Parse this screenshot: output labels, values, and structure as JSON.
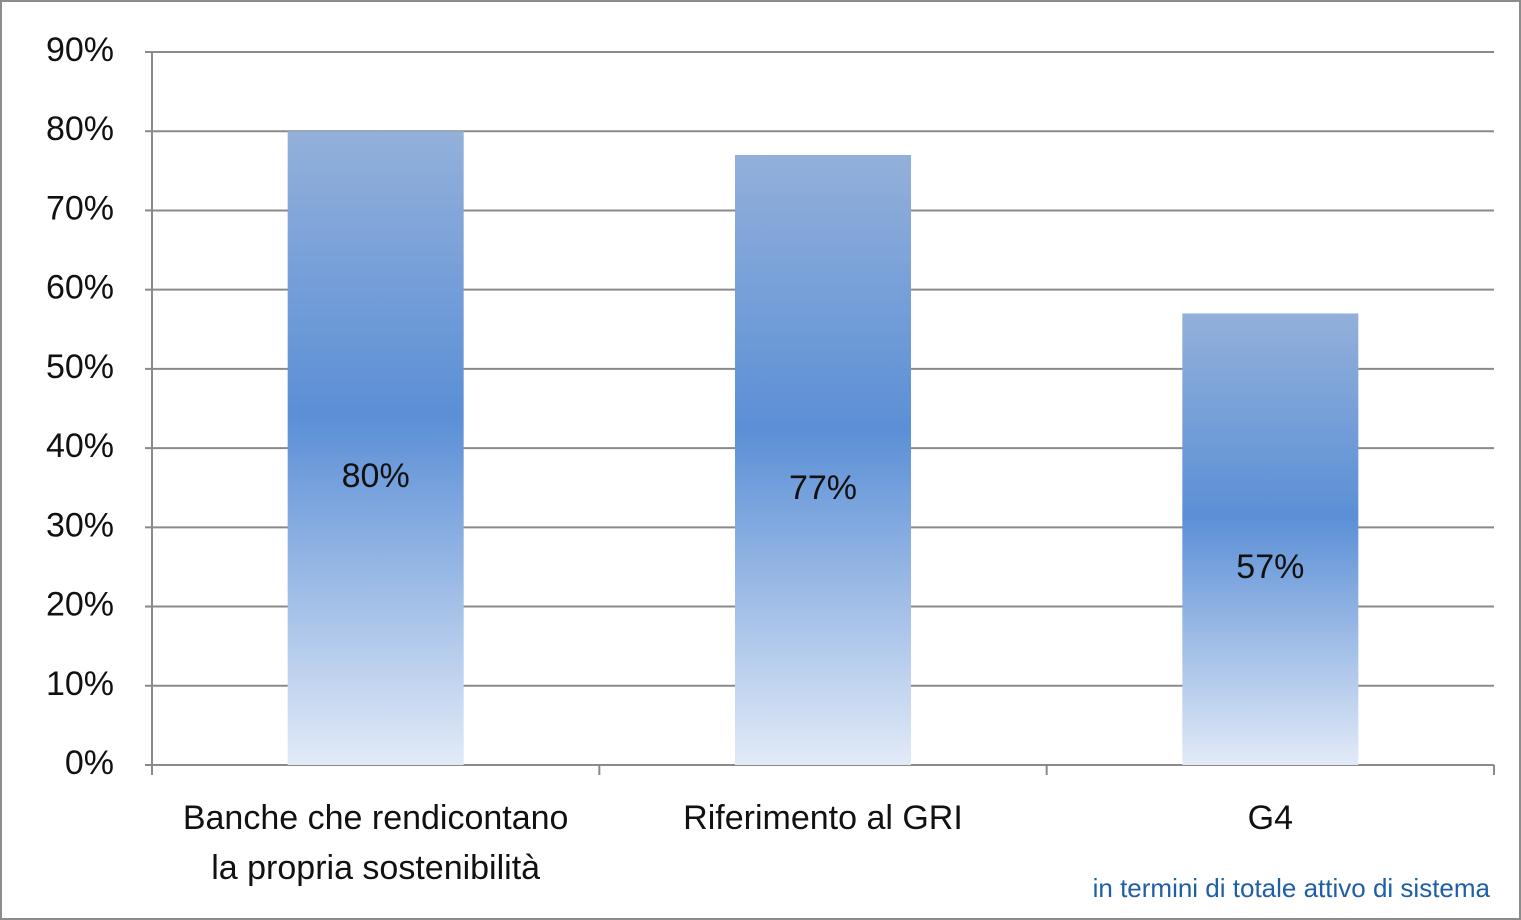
{
  "chart_data": {
    "type": "bar",
    "categories": [
      "Banche che rendicontano la propria sostenibilità",
      "Riferimento al GRI",
      "G4"
    ],
    "values": [
      80,
      77,
      57
    ],
    "value_labels": [
      "80%",
      "77%",
      "57%"
    ],
    "color": "#5b8fd6",
    "ylim": [
      0,
      90
    ],
    "yticks": [
      {
        "value": 0,
        "label": "0%"
      },
      {
        "value": 10,
        "label": "10%"
      },
      {
        "value": 20,
        "label": "20%"
      },
      {
        "value": 30,
        "label": "30%"
      },
      {
        "value": 40,
        "label": "40%"
      },
      {
        "value": 50,
        "label": "50%"
      },
      {
        "value": 60,
        "label": "60%"
      },
      {
        "value": 70,
        "label": "70%"
      },
      {
        "value": 80,
        "label": "80%"
      },
      {
        "value": 90,
        "label": "90%"
      }
    ],
    "grid": true,
    "annotation": "in termini di totale attivo di sistema"
  }
}
